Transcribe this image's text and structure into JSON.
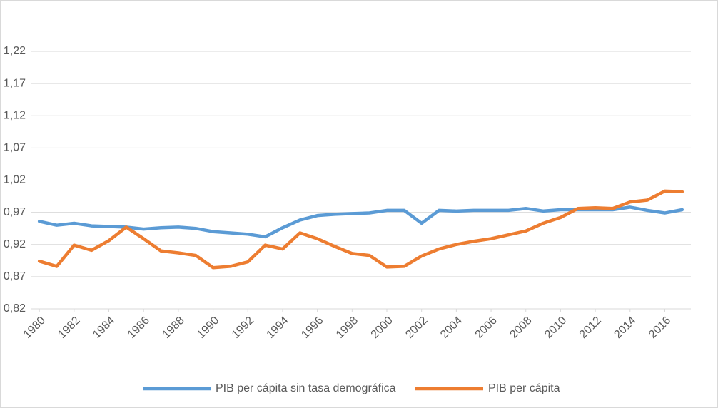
{
  "chart_data": {
    "type": "line",
    "x": [
      1980,
      1981,
      1982,
      1983,
      1984,
      1985,
      1986,
      1987,
      1988,
      1989,
      1990,
      1991,
      1992,
      1993,
      1994,
      1995,
      1996,
      1997,
      1998,
      1999,
      2000,
      2001,
      2002,
      2003,
      2004,
      2005,
      2006,
      2007,
      2008,
      2009,
      2010,
      2011,
      2012,
      2013,
      2014,
      2015,
      2016,
      2017
    ],
    "series": [
      {
        "name": "PIB per cápita sin tasa demográfica",
        "color": "#5b9bd5",
        "values": [
          0.956,
          0.95,
          0.953,
          0.949,
          0.948,
          0.947,
          0.944,
          0.946,
          0.947,
          0.945,
          0.94,
          0.938,
          0.936,
          0.932,
          0.946,
          0.958,
          0.965,
          0.967,
          0.968,
          0.969,
          0.973,
          0.973,
          0.953,
          0.973,
          0.972,
          0.973,
          0.973,
          0.973,
          0.976,
          0.972,
          0.974,
          0.974,
          0.974,
          0.974,
          0.978,
          0.973,
          0.969,
          0.974
        ]
      },
      {
        "name": "PIB per cápita",
        "color": "#ed7d31",
        "values": [
          0.894,
          0.886,
          0.919,
          0.911,
          0.926,
          0.947,
          0.929,
          0.91,
          0.907,
          0.903,
          0.884,
          0.886,
          0.893,
          0.919,
          0.913,
          0.938,
          0.929,
          0.917,
          0.906,
          0.903,
          0.885,
          0.886,
          0.902,
          0.913,
          0.92,
          0.925,
          0.929,
          0.935,
          0.941,
          0.953,
          0.962,
          0.976,
          0.977,
          0.976,
          0.986,
          0.989,
          1.003,
          1.002
        ]
      }
    ],
    "xlim": [
      1979.5,
      2017.5
    ],
    "xticks": [
      1980,
      1982,
      1984,
      1986,
      1988,
      1990,
      1992,
      1994,
      1996,
      1998,
      2000,
      2002,
      2004,
      2006,
      2008,
      2010,
      2012,
      2014,
      2016
    ],
    "ylim": [
      0.82,
      1.22
    ],
    "yticks": [
      {
        "value": 0.82,
        "label": "0,82"
      },
      {
        "value": 0.87,
        "label": "0,87"
      },
      {
        "value": 0.92,
        "label": "0,92"
      },
      {
        "value": 0.97,
        "label": "0,97"
      },
      {
        "value": 1.02,
        "label": "1,02"
      },
      {
        "value": 1.07,
        "label": "1,07"
      },
      {
        "value": 1.12,
        "label": "1,12"
      },
      {
        "value": 1.17,
        "label": "1,17"
      },
      {
        "value": 1.22,
        "label": "1,22"
      }
    ],
    "grid": true,
    "legend": "bottom"
  }
}
